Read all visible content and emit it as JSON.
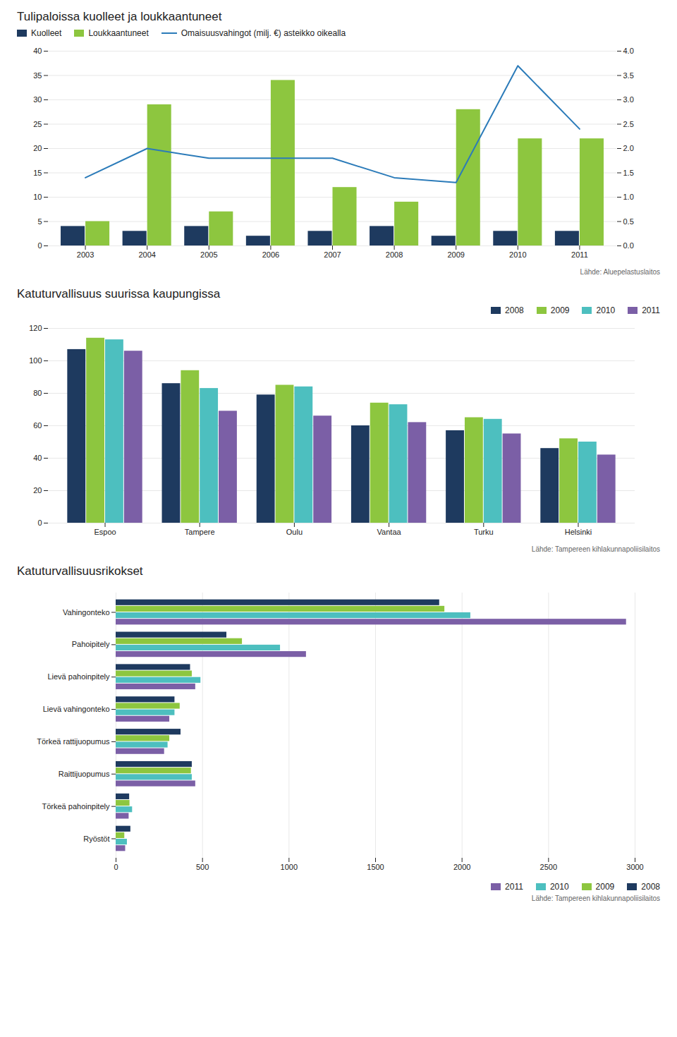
{
  "chart_data": [
    {
      "type": "bar",
      "title": "Tulipaloissa kuolleet ja loukkaantuneet",
      "categories": [
        "2003",
        "2004",
        "2005",
        "2006",
        "2007",
        "2008",
        "2009",
        "2010",
        "2011"
      ],
      "series": [
        {
          "name": "Kuolleet",
          "color": "#1e3a5f",
          "values": [
            4,
            3,
            4,
            2,
            3,
            4,
            2,
            3,
            3
          ]
        },
        {
          "name": "Loukkaantuneet",
          "color": "#8dc63f",
          "values": [
            5,
            29,
            7,
            34,
            12,
            9,
            28,
            22,
            22
          ]
        },
        {
          "name": "Omaisuusvahingot (milj. €) asteikko oikealla",
          "type": "line",
          "axis": "y2",
          "color": "#2b7bb9",
          "values": [
            1.4,
            2.0,
            1.8,
            1.8,
            1.8,
            1.4,
            1.3,
            3.7,
            2.4
          ]
        }
      ],
      "ylim": [
        0,
        40
      ],
      "yticks": [
        0,
        5,
        10,
        15,
        20,
        25,
        30,
        35,
        40
      ],
      "y2lim": [
        0,
        4
      ],
      "y2ticks": [
        {
          "value": 0,
          "label": "0.0"
        },
        0.5,
        {
          "value": 1,
          "label": "1.0"
        },
        1.5,
        {
          "value": 2,
          "label": "2.0"
        },
        2.5,
        {
          "value": 3,
          "label": "3.0"
        },
        3.5,
        {
          "value": 4,
          "label": "4.0"
        }
      ],
      "grid": true,
      "legend": "upper left",
      "annotations": [
        "Lähde: Aluepelastuslaitos"
      ]
    },
    {
      "type": "bar",
      "title": "Katuturvallisuus suurissa kaupungissa",
      "categories": [
        "Espoo",
        "Tampere",
        "Oulu",
        "Vantaa",
        "Turku",
        "Helsinki"
      ],
      "series": [
        {
          "name": "2008",
          "color": "#1e3a5f",
          "values": [
            107,
            86,
            79,
            60,
            57,
            46
          ]
        },
        {
          "name": "2009",
          "color": "#8dc63f",
          "values": [
            114,
            94,
            85,
            74,
            65,
            52
          ]
        },
        {
          "name": "2010",
          "color": "#4dbfbf",
          "values": [
            113,
            83,
            84,
            73,
            64,
            50
          ]
        },
        {
          "name": "2011",
          "color": "#7b5fa6",
          "values": [
            106,
            69,
            66,
            62,
            55,
            42
          ]
        }
      ],
      "ylim": [
        0,
        120
      ],
      "yticks": [
        0,
        20,
        40,
        60,
        80,
        100,
        120
      ],
      "grid": true,
      "legend": "upper right",
      "annotations": [
        "Lähde: Tampereen kihlakunnapoliisilaitos"
      ]
    },
    {
      "type": "bar",
      "orientation": "horizontal",
      "title": "Katuturvallisuusrikokset",
      "categories": [
        "Vahingonteko",
        "Pahoipitely",
        "Lievä pahoinpitely",
        "Lievä vahingonteko",
        "Törkeä rattijuopumus",
        "Raittijuopumus",
        "Törkeä pahoinpitely",
        "Ryöstöt"
      ],
      "series": [
        {
          "name": "2011",
          "color": "#7b5fa6",
          "values": [
            2950,
            1100,
            460,
            310,
            280,
            460,
            75,
            55
          ]
        },
        {
          "name": "2010",
          "color": "#4dbfbf",
          "values": [
            2050,
            950,
            490,
            340,
            300,
            440,
            95,
            65
          ]
        },
        {
          "name": "2009",
          "color": "#8dc63f",
          "values": [
            1900,
            730,
            440,
            370,
            310,
            435,
            80,
            50
          ]
        },
        {
          "name": "2008",
          "color": "#1e3a5f",
          "values": [
            1870,
            640,
            430,
            340,
            375,
            440,
            78,
            85
          ]
        }
      ],
      "xlim": [
        0,
        3000
      ],
      "xticks": [
        0,
        500,
        1000,
        1500,
        2000,
        2500,
        3000
      ],
      "grid": true,
      "legend": "lower right",
      "annotations": [
        "Lähde: Tampereen kihlakunnapoliisilaitos"
      ]
    }
  ]
}
